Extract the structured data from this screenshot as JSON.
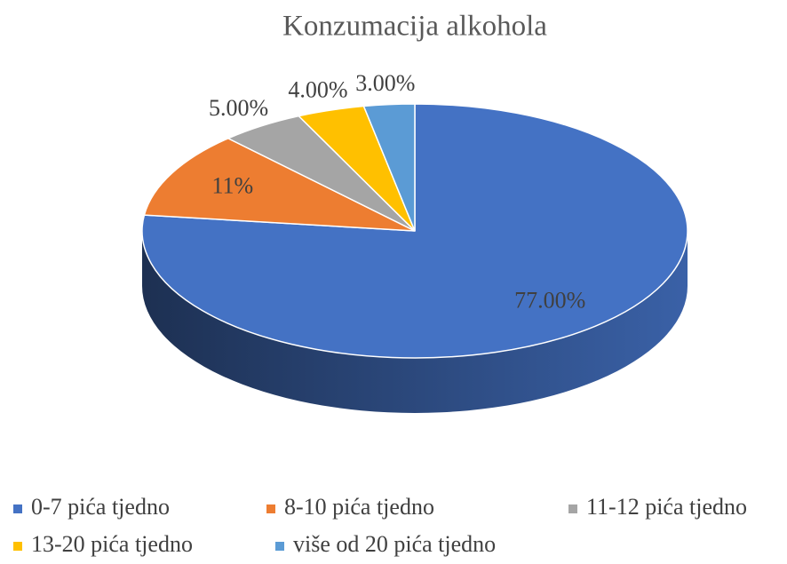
{
  "chart_data": {
    "type": "pie3d",
    "title": "Konzumacija alkohola",
    "categories": [
      "0-7 pića tjedno",
      "8-10 pića tjedno",
      "11-12 pića tjedno",
      "13-20 pića tjedno",
      "više od 20 pića tjedno"
    ],
    "values": [
      77,
      11,
      5,
      4,
      3
    ],
    "value_labels": [
      "77.00%",
      "11%",
      "5.00%",
      "4.00%",
      "3.00%"
    ],
    "colors": [
      "#4472c4",
      "#ed7d31",
      "#a5a5a5",
      "#ffc000",
      "#5b9bd5"
    ],
    "legend": "bottom"
  }
}
